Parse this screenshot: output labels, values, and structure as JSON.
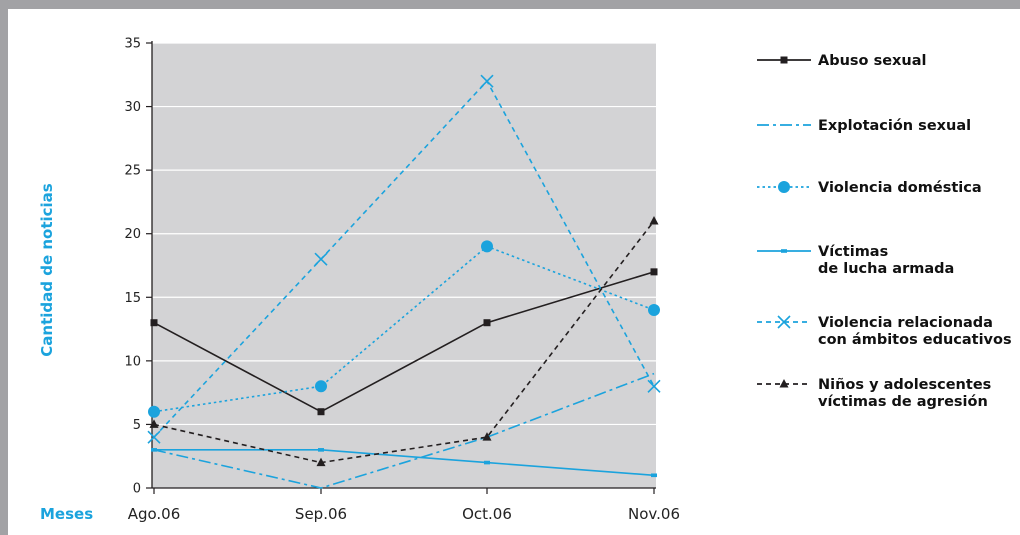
{
  "colors": {
    "frame": "#a2a2a5",
    "plot_bg": "#d3d3d5",
    "accent": "#1ba3dd",
    "black": "#231f20"
  },
  "chart_data": {
    "type": "line",
    "categories": [
      "Ago.06",
      "Sep.06",
      "Oct.06",
      "Nov.06"
    ],
    "xlabel": "Meses",
    "ylabel": "Cantidad de noticias",
    "ylim": [
      0,
      35
    ],
    "yticks": [
      0,
      5,
      10,
      15,
      20,
      25,
      30,
      35
    ],
    "grid": true,
    "legend_position": "right",
    "series": [
      {
        "name": "Abuso sexual",
        "values": [
          13,
          6,
          13,
          17
        ],
        "color": "#231f20",
        "dash": "solid",
        "marker": "square"
      },
      {
        "name": "Explotación sexual",
        "values": [
          3,
          0,
          4,
          9
        ],
        "color": "#1ba3dd",
        "dash": "dashdot",
        "marker": "none"
      },
      {
        "name": "Violencia doméstica",
        "values": [
          6,
          8,
          19,
          14
        ],
        "color": "#1ba3dd",
        "dash": "dotted",
        "marker": "circle"
      },
      {
        "name": "Víctimas de lucha armada",
        "values": [
          3,
          3,
          2,
          1
        ],
        "color": "#1ba3dd",
        "dash": "solid",
        "marker": "smallsquare"
      },
      {
        "name": "Violencia relacionada con ámbitos educativos",
        "values": [
          4,
          18,
          32,
          8
        ],
        "color": "#1ba3dd",
        "dash": "dashed",
        "marker": "x"
      },
      {
        "name": "Niños y adolescentes víctimas de agresión",
        "values": [
          5,
          2,
          4,
          21
        ],
        "color": "#231f20",
        "dash": "dashed",
        "marker": "triangle"
      }
    ],
    "legend_lines": [
      [
        "Abuso sexual"
      ],
      [
        "Explotación sexual"
      ],
      [
        "Violencia doméstica"
      ],
      [
        "Víctimas",
        "de lucha armada"
      ],
      [
        "Violencia relacionada",
        "con ámbitos educativos"
      ],
      [
        "Niños y adolescentes",
        "víctimas de agresión"
      ]
    ]
  }
}
